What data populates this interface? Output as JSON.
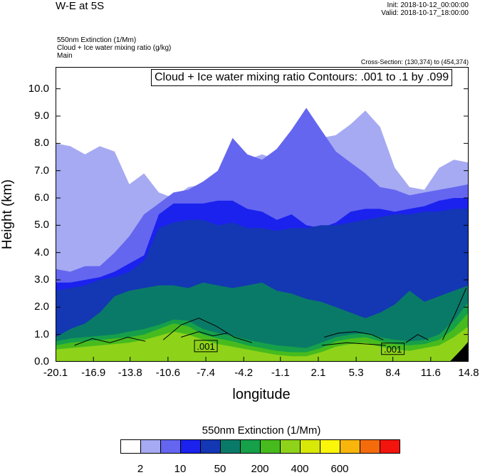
{
  "header": {
    "title": "W-E at 5S",
    "init": "Init: 2018-10-12_00:00:00",
    "valid": "Valid: 2018-10-17_18:00:00",
    "field1": "550nm Extinction   (1/Mm)",
    "field2": "Cloud + Ice water mixing ratio   (g/kg)",
    "field3": "Main",
    "cross_section": "Cross-Section: (130,374) to (454,374)"
  },
  "chart_data": {
    "type": "heatmap",
    "title": "W-E at 5S",
    "xlabel": "longitude",
    "ylabel": "Height (km)",
    "xlim": [
      -20.1,
      14.8
    ],
    "ylim": [
      0,
      10.8
    ],
    "x_ticks": [
      "-20.1",
      "-16.9",
      "-13.8",
      "-10.6",
      "-7.4",
      "-4.2",
      "-1.1",
      "2.1",
      "5.3",
      "8.4",
      "11.6",
      "14.8"
    ],
    "x_tick_values": [
      -20.1,
      -16.9,
      -13.8,
      -10.6,
      -7.4,
      -4.2,
      -1.1,
      2.1,
      5.3,
      8.4,
      11.6,
      14.8
    ],
    "y_ticks": [
      "0.0",
      "1.0",
      "2.0",
      "3.0",
      "4.0",
      "5.0",
      "6.0",
      "7.0",
      "8.0",
      "9.0",
      "10.0"
    ],
    "y_tick_values": [
      0,
      1,
      2,
      3,
      4,
      5,
      6,
      7,
      8,
      9,
      10
    ],
    "contour_annotation": "Cloud + Ice water mixing ratio Contours: .001 to .1 by .099",
    "contour_labels": [
      {
        "text": ".001",
        "x": -7.4,
        "y": 0.55
      },
      {
        "text": ".001",
        "x": 8.4,
        "y": 0.45
      }
    ],
    "layers": [
      {
        "level": "2",
        "color": "#a6aaf2",
        "top_km": [
          8.0,
          7.9,
          7.6,
          7.9,
          7.7,
          6.5,
          6.9,
          6.2,
          6.0,
          6.4,
          6.5,
          6.5,
          6.9,
          7.4,
          7.6,
          7.4,
          7.0,
          7.2,
          8.2,
          8.3,
          8.7,
          9.2,
          8.6,
          7.1,
          6.4,
          6.3,
          7.1,
          7.4,
          7.3
        ]
      },
      {
        "level": "5",
        "color": "#6466f0",
        "top_km": [
          3.4,
          3.3,
          3.5,
          3.5,
          4.0,
          4.6,
          5.4,
          5.8,
          6.2,
          6.3,
          6.6,
          7.0,
          8.2,
          7.6,
          7.4,
          7.8,
          8.5,
          9.3,
          8.5,
          7.7,
          7.3,
          6.9,
          6.4,
          6.3,
          6.1,
          6.2,
          6.3,
          6.4,
          6.5
        ]
      },
      {
        "level": "10",
        "color": "#1b22ee",
        "top_km": [
          2.9,
          2.9,
          3.0,
          3.1,
          3.3,
          3.6,
          3.9,
          5.4,
          5.8,
          5.8,
          5.8,
          5.9,
          5.9,
          5.6,
          5.5,
          5.2,
          5.4,
          5.0,
          4.9,
          5.1,
          5.5,
          5.6,
          5.6,
          5.5,
          5.6,
          5.7,
          5.9,
          6.0,
          6.0
        ]
      },
      {
        "level": "20",
        "color": "#1437b3",
        "top_km": [
          2.6,
          2.7,
          2.8,
          3.0,
          3.1,
          3.3,
          3.7,
          4.9,
          5.1,
          5.2,
          5.2,
          5.0,
          5.1,
          4.9,
          4.9,
          4.8,
          4.9,
          4.9,
          5.0,
          5.0,
          5.1,
          5.2,
          5.3,
          5.4,
          5.4,
          5.5,
          5.5,
          5.6,
          5.6
        ]
      },
      {
        "level": "50",
        "color": "#0a7a68",
        "top_km": [
          0.9,
          1.2,
          1.4,
          1.8,
          2.4,
          2.6,
          2.7,
          2.8,
          2.8,
          2.7,
          2.9,
          2.8,
          2.7,
          2.8,
          2.9,
          2.6,
          2.5,
          2.3,
          2.2,
          2.0,
          1.8,
          1.6,
          1.8,
          2.1,
          2.6,
          2.2,
          2.4,
          2.6,
          2.8
        ]
      },
      {
        "level": "100",
        "color": "#16a04a",
        "top_km": [
          0.75,
          0.85,
          0.9,
          0.95,
          1.0,
          1.1,
          1.2,
          1.35,
          1.55,
          1.5,
          1.2,
          1.05,
          0.95,
          0.8,
          0.7,
          0.6,
          0.55,
          0.5,
          0.7,
          0.9,
          1.0,
          1.05,
          0.9,
          0.8,
          0.75,
          0.8,
          1.0,
          1.5,
          2.2
        ]
      },
      {
        "level": "200",
        "color": "#47bb1e",
        "top_km": [
          0.6,
          0.7,
          0.75,
          0.8,
          0.85,
          0.9,
          1.0,
          1.2,
          1.4,
          1.3,
          1.0,
          0.85,
          0.75,
          0.6,
          0.5,
          0.4,
          0.35,
          0.35,
          0.5,
          0.75,
          0.85,
          0.9,
          0.75,
          0.65,
          0.6,
          0.65,
          0.8,
          1.2,
          1.8
        ]
      },
      {
        "level": "300",
        "color": "#8ed31a",
        "top_km": [
          0.45,
          0.5,
          0.55,
          0.6,
          0.65,
          0.7,
          0.8,
          0.95,
          1.1,
          1.0,
          0.8,
          0.65,
          0.55,
          0.45,
          0.35,
          0.25,
          0.2,
          0.2,
          0.35,
          0.55,
          0.65,
          0.7,
          0.55,
          0.45,
          0.4,
          0.5,
          0.6,
          0.9,
          1.3
        ]
      }
    ],
    "colorbar": {
      "title": "550nm Extinction  (1/Mm)",
      "colors": [
        "#ffffff",
        "#a6aaf2",
        "#6466f0",
        "#1b22ee",
        "#1437b3",
        "#0a7a68",
        "#16a04a",
        "#47bb1e",
        "#8ed31a",
        "#d8e807",
        "#fbf50a",
        "#f8b50c",
        "#f46b0c",
        "#f3140d"
      ],
      "labels": [
        "2",
        "10",
        "50",
        "200",
        "400",
        "600"
      ]
    }
  }
}
